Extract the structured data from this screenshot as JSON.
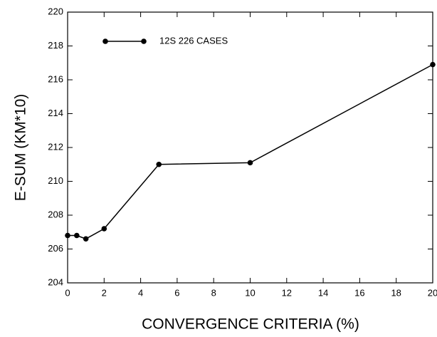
{
  "chart_data": {
    "type": "line",
    "xlabel": "CONVERGENCE CRITERIA (%)",
    "ylabel": "E-SUM (KM*10)",
    "x": [
      0,
      0.5,
      1,
      2,
      5,
      10,
      20
    ],
    "series": [
      {
        "name": "12S  226 CASES",
        "color": "#000000",
        "values": [
          206.8,
          206.8,
          206.6,
          207.2,
          211.0,
          211.1,
          216.9
        ]
      }
    ],
    "xlim": [
      0,
      20
    ],
    "xticks": [
      0,
      2,
      4,
      6,
      8,
      10,
      12,
      14,
      16,
      18,
      20
    ],
    "ylim": [
      204,
      220
    ],
    "yticks": [
      204,
      206,
      208,
      210,
      212,
      214,
      216,
      218,
      220
    ]
  }
}
